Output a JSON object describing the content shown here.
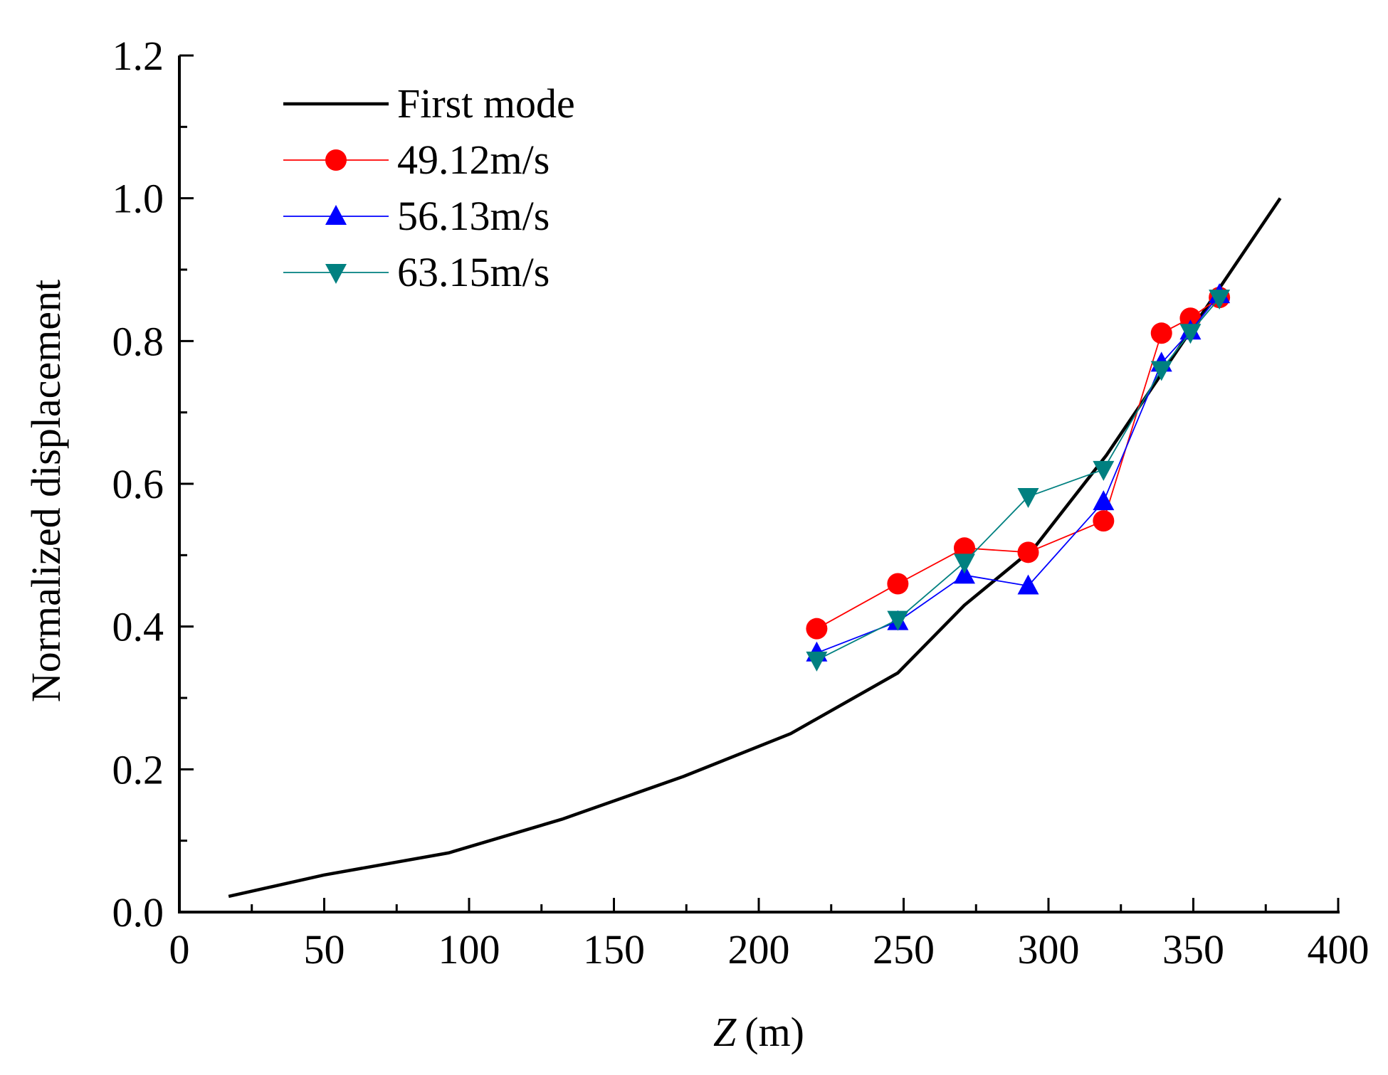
{
  "chart_data": {
    "type": "line",
    "xlabel": {
      "var": "Z",
      "unit": "(m)"
    },
    "ylabel": "Normalized displacement",
    "xlim": [
      0,
      400
    ],
    "ylim": [
      0,
      1.2
    ],
    "xticks": [
      "0",
      "50",
      "100",
      "150",
      "200",
      "250",
      "300",
      "350",
      "400"
    ],
    "yticks": [
      "0.0",
      "0.2",
      "0.4",
      "0.6",
      "0.8",
      "1.0",
      "1.2"
    ],
    "grid": false,
    "legend_position": "top-left",
    "series": [
      {
        "name": "First mode",
        "color": "#000000",
        "marker": "none",
        "x": [
          17,
          50,
          93,
          132,
          174,
          211,
          248,
          271,
          295,
          320,
          345,
          380
        ],
        "y": [
          0.022,
          0.052,
          0.083,
          0.13,
          0.19,
          0.25,
          0.335,
          0.43,
          0.51,
          0.64,
          0.79,
          1.0
        ]
      },
      {
        "name": "49.12m/s",
        "color": "#ff0000",
        "marker": "circle",
        "x": [
          220,
          248,
          271,
          293,
          319,
          339,
          349,
          359
        ],
        "y": [
          0.397,
          0.46,
          0.51,
          0.504,
          0.548,
          0.811,
          0.832,
          0.861
        ]
      },
      {
        "name": "56.13m/s",
        "color": "#0000ff",
        "marker": "triangle-up",
        "x": [
          220,
          248,
          271,
          293,
          319,
          339,
          349,
          359
        ],
        "y": [
          0.363,
          0.407,
          0.472,
          0.457,
          0.575,
          0.769,
          0.814,
          0.865
        ]
      },
      {
        "name": "63.15m/s",
        "color": "#008080",
        "marker": "triangle-down",
        "x": [
          220,
          248,
          271,
          293,
          319,
          339,
          349,
          359
        ],
        "y": [
          0.353,
          0.41,
          0.49,
          0.582,
          0.62,
          0.76,
          0.812,
          0.86
        ]
      }
    ]
  }
}
